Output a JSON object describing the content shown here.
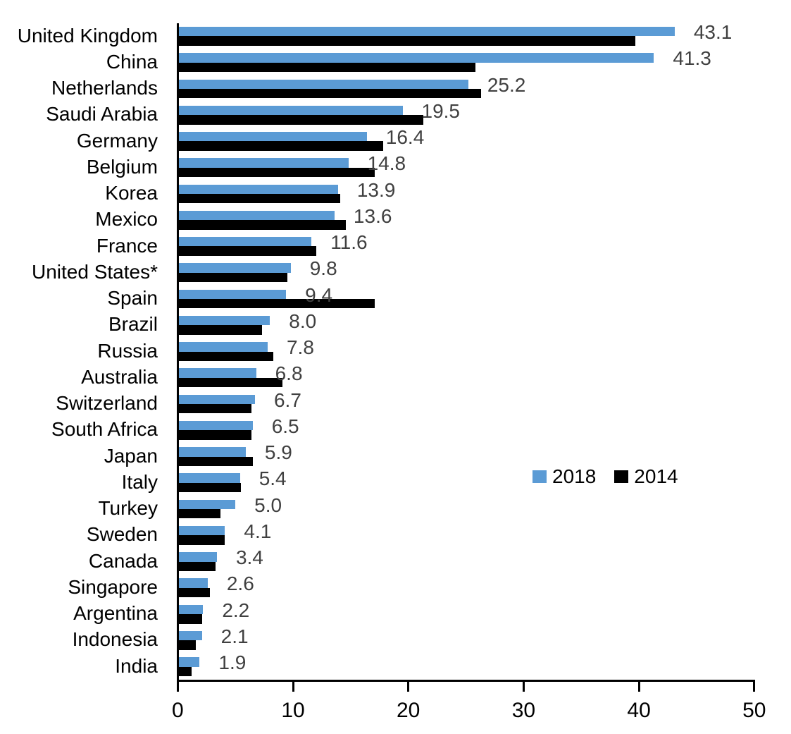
{
  "colors": {
    "series_2018": "#5B9BD5",
    "series_2014": "#000000",
    "value_label": "#404040",
    "axis": "#000000",
    "background": "#FFFFFF"
  },
  "legend": {
    "items": [
      {
        "label": "2018",
        "color": "#5B9BD5"
      },
      {
        "label": "2014",
        "color": "#000000"
      }
    ]
  },
  "chart_data": {
    "type": "bar",
    "orientation": "horizontal",
    "title": "",
    "xlabel": "",
    "ylabel": "",
    "xlim": [
      0,
      50
    ],
    "x_ticks": [
      0,
      10,
      20,
      30,
      40,
      50
    ],
    "grid": false,
    "legend_position": "middle-right",
    "categories": [
      "United Kingdom",
      "China",
      "Netherlands",
      "Saudi Arabia",
      "Germany",
      "Belgium",
      "Korea",
      "Mexico",
      "France",
      "United States*",
      "Spain",
      "Brazil",
      "Russia",
      "Australia",
      "Switzerland",
      "South Africa",
      "Japan",
      "Italy",
      "Turkey",
      "Sweden",
      "Canada",
      "Singapore",
      "Argentina",
      "Indonesia",
      "India"
    ],
    "series": [
      {
        "name": "2018",
        "color": "#5B9BD5",
        "values": [
          43.1,
          41.3,
          25.2,
          19.5,
          16.4,
          14.8,
          13.9,
          13.6,
          11.6,
          9.8,
          9.4,
          8.0,
          7.8,
          6.8,
          6.7,
          6.5,
          5.9,
          5.4,
          5.0,
          4.1,
          3.4,
          2.6,
          2.2,
          2.1,
          1.9
        ]
      },
      {
        "name": "2014",
        "color": "#000000",
        "values": [
          39.7,
          25.8,
          26.3,
          21.3,
          17.8,
          17.1,
          14.1,
          14.6,
          12.0,
          9.5,
          17.1,
          7.3,
          8.3,
          9.1,
          6.4,
          6.4,
          6.5,
          5.5,
          3.7,
          4.1,
          3.3,
          2.8,
          2.1,
          1.6,
          1.2
        ]
      }
    ],
    "value_labels": {
      "series": "2018",
      "values": [
        "43.1",
        "41.3",
        "25.2",
        "19.5",
        "16.4",
        "14.8",
        "13.9",
        "13.6",
        "11.6",
        "9.8",
        "9.4",
        "8.0",
        "7.8",
        "6.8",
        "6.7",
        "6.5",
        "5.9",
        "5.4",
        "5.0",
        "4.1",
        "3.4",
        "2.6",
        "2.2",
        "2.1",
        "1.9"
      ]
    }
  }
}
